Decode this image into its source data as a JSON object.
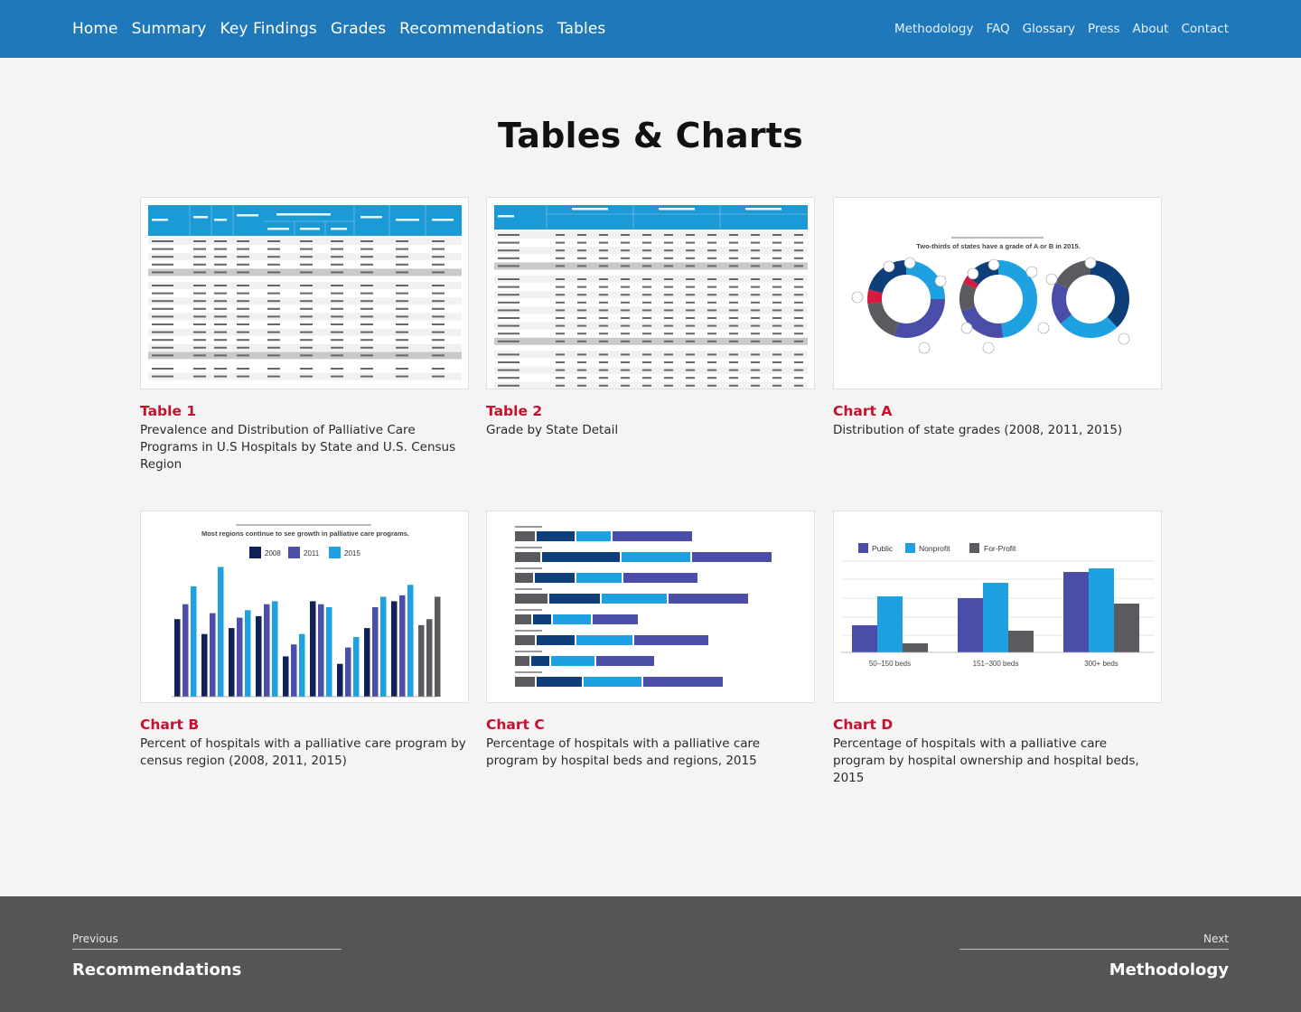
{
  "nav": {
    "main": [
      "Home",
      "Summary",
      "Key Findings",
      "Grades",
      "Recommendations",
      "Tables"
    ],
    "secondary": [
      "Methodology",
      "FAQ",
      "Glossary",
      "Press",
      "About",
      "Contact"
    ]
  },
  "page_title": "Tables & Charts",
  "cards": [
    {
      "label": "Table 1",
      "desc": "Prevalence and Distribution of Palliative Care Programs in U.S Hospitals by State and U.S. Census Region"
    },
    {
      "label": "Table 2",
      "desc": "Grade by State Detail"
    },
    {
      "label": "Chart A",
      "desc": "Distribution of state grades (2008, 2011, 2015)"
    },
    {
      "label": "Chart B",
      "desc": "Percent of hospitals with a palliative care program by census region (2008, 2011, 2015)"
    },
    {
      "label": "Chart C",
      "desc": "Percentage of hospitals with a palliative care program by hospital beds and regions, 2015"
    },
    {
      "label": "Chart D",
      "desc": "Percentage of hospitals with a palliative care program by hospital ownership and hospital beds, 2015"
    }
  ],
  "thumbs": {
    "chart_a": {
      "title": "Two-thirds of states have a grade of A or B in 2015."
    },
    "chart_b": {
      "title": "Most regions continue to see growth in palliative care programs.",
      "legend": [
        "2008",
        "2011",
        "2015"
      ]
    },
    "chart_d": {
      "legend": [
        "Public",
        "Nonprofit",
        "For-Profit"
      ],
      "categories": [
        "50–150 beds",
        "151–300 beds",
        "300+ beds"
      ]
    }
  },
  "footer": {
    "prev_label": "Previous",
    "prev_title": "Recommendations",
    "next_label": "Next",
    "next_title": "Methodology"
  }
}
